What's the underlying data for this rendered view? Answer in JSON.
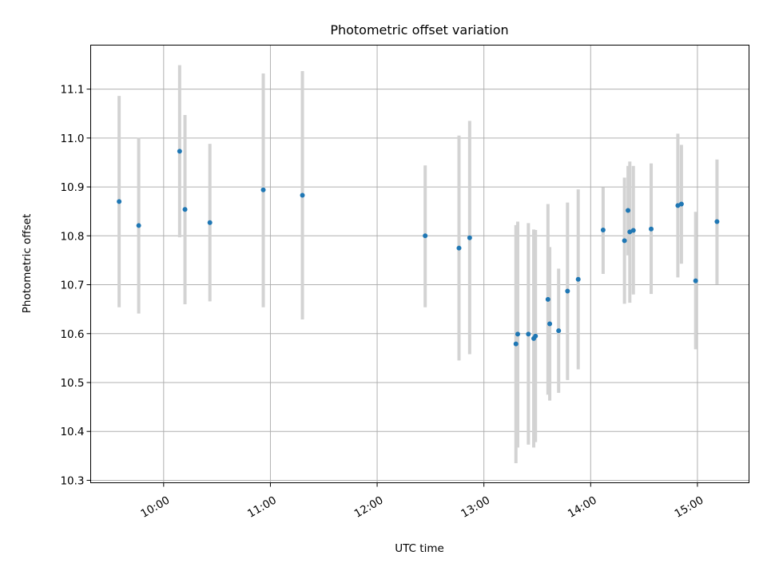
{
  "chart_data": {
    "type": "scatter",
    "title": "Photometric offset variation",
    "xlabel": "UTC time",
    "ylabel": "Photometric offset",
    "x_tick_labels": [
      "10:00",
      "11:00",
      "12:00",
      "13:00",
      "14:00",
      "15:00"
    ],
    "x_ticks": [
      "10:00",
      "11:00",
      "12:00",
      "13:00",
      "14:00",
      "15:00"
    ],
    "y_ticks": [
      10.3,
      10.4,
      10.5,
      10.6,
      10.7,
      10.8,
      10.9,
      11.0,
      11.1
    ],
    "y_tick_labels": [
      "10.3",
      "10.4",
      "10.5",
      "10.6",
      "10.7",
      "10.8",
      "10.9",
      "11.0",
      "11.1"
    ],
    "xlim": [
      "09:19",
      "15:29"
    ],
    "ylim": [
      10.295,
      11.19
    ],
    "grid": true,
    "colors": {
      "marker": "#1f77b4",
      "errorbar": "#d3d3d3",
      "grid": "#b0b0b0"
    },
    "points": [
      {
        "x": "09:35",
        "y": 10.87,
        "yerr_low": 10.654,
        "yerr_high": 11.086
      },
      {
        "x": "09:46",
        "y": 10.821,
        "yerr_low": 10.641,
        "yerr_high": 11.001
      },
      {
        "x": "10:09",
        "y": 10.973,
        "yerr_low": 10.797,
        "yerr_high": 11.149
      },
      {
        "x": "10:12",
        "y": 10.854,
        "yerr_low": 10.66,
        "yerr_high": 11.047
      },
      {
        "x": "10:26",
        "y": 10.827,
        "yerr_low": 10.666,
        "yerr_high": 10.988
      },
      {
        "x": "10:56",
        "y": 10.894,
        "yerr_low": 10.654,
        "yerr_high": 11.132
      },
      {
        "x": "11:18",
        "y": 10.883,
        "yerr_low": 10.629,
        "yerr_high": 11.137
      },
      {
        "x": "12:27",
        "y": 10.8,
        "yerr_low": 10.654,
        "yerr_high": 10.944
      },
      {
        "x": "12:46",
        "y": 10.775,
        "yerr_low": 10.545,
        "yerr_high": 11.005
      },
      {
        "x": "12:52",
        "y": 10.796,
        "yerr_low": 10.558,
        "yerr_high": 11.035
      },
      {
        "x": "13:18",
        "y": 10.579,
        "yerr_low": 10.335,
        "yerr_high": 10.822
      },
      {
        "x": "13:19",
        "y": 10.599,
        "yerr_low": 10.367,
        "yerr_high": 10.829
      },
      {
        "x": "13:25",
        "y": 10.599,
        "yerr_low": 10.373,
        "yerr_high": 10.826
      },
      {
        "x": "13:28",
        "y": 10.59,
        "yerr_low": 10.367,
        "yerr_high": 10.813
      },
      {
        "x": "13:29",
        "y": 10.595,
        "yerr_low": 10.378,
        "yerr_high": 10.812
      },
      {
        "x": "13:36",
        "y": 10.67,
        "yerr_low": 10.475,
        "yerr_high": 10.865
      },
      {
        "x": "13:37",
        "y": 10.62,
        "yerr_low": 10.463,
        "yerr_high": 10.777
      },
      {
        "x": "13:42",
        "y": 10.606,
        "yerr_low": 10.479,
        "yerr_high": 10.733
      },
      {
        "x": "13:47",
        "y": 10.687,
        "yerr_low": 10.505,
        "yerr_high": 10.868
      },
      {
        "x": "13:53",
        "y": 10.711,
        "yerr_low": 10.527,
        "yerr_high": 10.895
      },
      {
        "x": "14:07",
        "y": 10.812,
        "yerr_low": 10.722,
        "yerr_high": 10.899
      },
      {
        "x": "14:19",
        "y": 10.79,
        "yerr_low": 10.661,
        "yerr_high": 10.919
      },
      {
        "x": "14:21",
        "y": 10.852,
        "yerr_low": 10.76,
        "yerr_high": 10.943
      },
      {
        "x": "14:22",
        "y": 10.808,
        "yerr_low": 10.663,
        "yerr_high": 10.952
      },
      {
        "x": "14:24",
        "y": 10.811,
        "yerr_low": 10.68,
        "yerr_high": 10.943
      },
      {
        "x": "14:34",
        "y": 10.814,
        "yerr_low": 10.681,
        "yerr_high": 10.948
      },
      {
        "x": "14:49",
        "y": 10.862,
        "yerr_low": 10.715,
        "yerr_high": 11.009
      },
      {
        "x": "14:51",
        "y": 10.865,
        "yerr_low": 10.743,
        "yerr_high": 10.986
      },
      {
        "x": "14:59",
        "y": 10.708,
        "yerr_low": 10.568,
        "yerr_high": 10.849
      },
      {
        "x": "15:11",
        "y": 10.829,
        "yerr_low": 10.701,
        "yerr_high": 10.956
      }
    ]
  }
}
